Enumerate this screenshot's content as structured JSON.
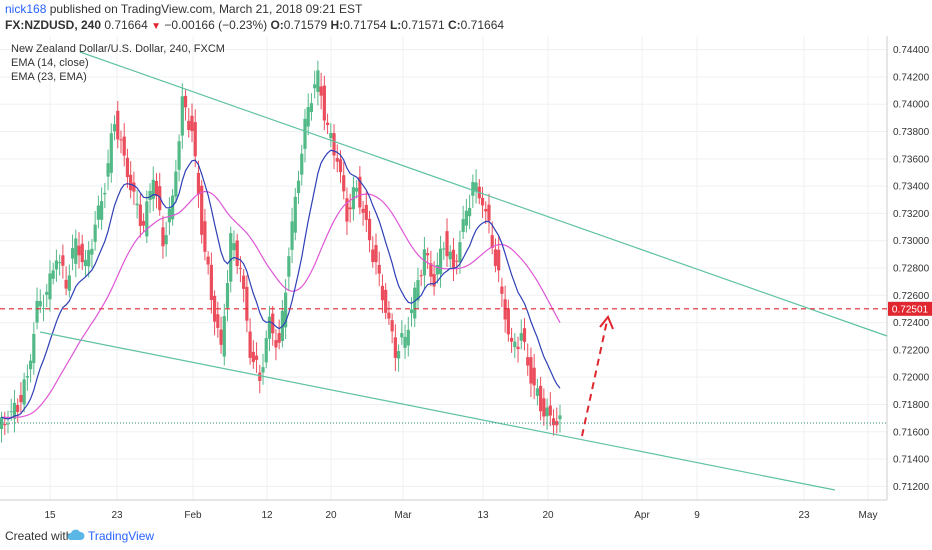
{
  "header": {
    "author": "nick168",
    "published": "published on TradingView.com, March 21, 2018 09:21 EST",
    "symbol": "FX:NZDUSD, 240",
    "last": "0.71664",
    "change": "−0.00166 (−0.23%)",
    "open_label": "O:",
    "open": "0.71579",
    "high_label": "H:",
    "high": "0.71754",
    "low_label": "L:",
    "low": "0.71571",
    "close_label": "C:",
    "close": "0.71664"
  },
  "legend": {
    "title": "New Zealand Dollar/U.S. Dollar, 240, FXCM",
    "ema1": "EMA (14, close)",
    "ema2": "EMA (23, EMA)"
  },
  "footer": {
    "created_with": "Created with",
    "brand": "TradingView"
  },
  "colors": {
    "bull": "#53b987",
    "bear": "#eb4d5c",
    "ema14": "#2e3fb5",
    "ema23": "#e056d6",
    "trendline": "#5fc2a2",
    "level": "#e0262f",
    "tag_bg": "#e0262f"
  },
  "chart_data": {
    "type": "candlestick",
    "title": "New Zealand Dollar/U.S. Dollar, 240, FXCM",
    "ylim": [
      0.711,
      0.745
    ],
    "y_ticks": [
      "0.74400",
      "0.74200",
      "0.74000",
      "0.73800",
      "0.73600",
      "0.73400",
      "0.73200",
      "0.73000",
      "0.72800",
      "0.72600",
      "0.72400",
      "0.72200",
      "0.72000",
      "0.71800",
      "0.71600",
      "0.71400",
      "0.71200"
    ],
    "x_ticks": [
      "15",
      "23",
      "Feb",
      "12",
      "20",
      "Mar",
      "13",
      "20",
      "Apr",
      "9",
      "23",
      "May"
    ],
    "current_level": "0.72501",
    "last_price": 0.71664,
    "closes_approx": [
      0.717,
      0.718,
      0.72,
      0.725,
      0.726,
      0.729,
      0.727,
      0.73,
      0.728,
      0.731,
      0.734,
      0.739,
      0.736,
      0.733,
      0.731,
      0.735,
      0.73,
      0.733,
      0.74,
      0.738,
      0.731,
      0.726,
      0.722,
      0.73,
      0.728,
      0.722,
      0.72,
      0.724,
      0.722,
      0.729,
      0.735,
      0.74,
      0.742,
      0.738,
      0.736,
      0.732,
      0.734,
      0.731,
      0.728,
      0.725,
      0.722,
      0.723,
      0.726,
      0.729,
      0.727,
      0.73,
      0.728,
      0.731,
      0.734,
      0.733,
      0.73,
      0.726,
      0.722,
      0.723,
      0.72,
      0.718,
      0.717,
      0.7166
    ],
    "annotations": [
      "upper descending trendline",
      "lower descending trendline",
      "horizontal level at 0.72501",
      "dashed red arrow up toward 0.72501"
    ]
  }
}
